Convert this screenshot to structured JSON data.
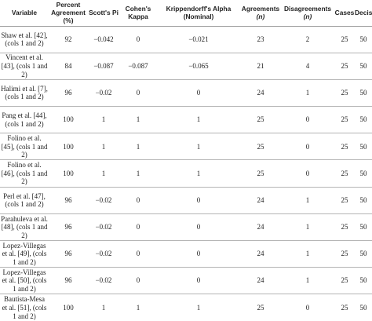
{
  "table": {
    "headers": {
      "variable": "Variable",
      "percent_agreement": "Percent Agreement (%)",
      "scotts_pi": "Scott's Pi",
      "cohens_kappa": "Cohen's Kappa",
      "krippendorff": "Krippendorff's Alpha (Nominal)",
      "agreements": "Agreements",
      "disagreements_1": "Disagreements",
      "disagreements_2": "(n)",
      "cases": "Cases",
      "decisions": "Decisions",
      "agreements_n": "(n)"
    },
    "rows": [
      {
        "variable": "Shaw et al. [42], (cols 1 and 2)",
        "percent": "92",
        "pi": "−0.042",
        "kappa": "0",
        "alpha": "−0.021",
        "agreements": "23",
        "disagreements": "2",
        "cases": "25",
        "decisions": "50"
      },
      {
        "variable": "Vincent et al. [43], (cols 1 and 2)",
        "percent": "84",
        "pi": "−0.087",
        "kappa": "−0.087",
        "alpha": "−0.065",
        "agreements": "21",
        "disagreements": "4",
        "cases": "25",
        "decisions": "50"
      },
      {
        "variable": "Halimi et al. [7], (cols 1 and 2)",
        "percent": "96",
        "pi": "−0.02",
        "kappa": "0",
        "alpha": "0",
        "agreements": "24",
        "disagreements": "1",
        "cases": "25",
        "decisions": "50"
      },
      {
        "variable": "Pang et al. [44], (cols 1 and 2)",
        "percent": "100",
        "pi": "1",
        "kappa": "1",
        "alpha": "1",
        "agreements": "25",
        "disagreements": "0",
        "cases": "25",
        "decisions": "50"
      },
      {
        "variable": "Folino et al. [45], (cols 1 and 2)",
        "percent": "100",
        "pi": "1",
        "kappa": "1",
        "alpha": "1",
        "agreements": "25",
        "disagreements": "0",
        "cases": "25",
        "decisions": "50"
      },
      {
        "variable": "Folino et al. [46], (cols 1 and 2)",
        "percent": "100",
        "pi": "1",
        "kappa": "1",
        "alpha": "1",
        "agreements": "25",
        "disagreements": "0",
        "cases": "25",
        "decisions": "50"
      },
      {
        "variable": "Perl et al. [47], (cols 1 and 2)",
        "percent": "96",
        "pi": "−0.02",
        "kappa": "0",
        "alpha": "0",
        "agreements": "24",
        "disagreements": "1",
        "cases": "25",
        "decisions": "50"
      },
      {
        "variable": "Parahuleva et al. [48], (cols 1 and 2)",
        "percent": "96",
        "pi": "−0.02",
        "kappa": "0",
        "alpha": "0",
        "agreements": "24",
        "disagreements": "1",
        "cases": "25",
        "decisions": "50"
      },
      {
        "variable": "Lopez-Villegas et al. [49], (cols 1 and 2)",
        "percent": "96",
        "pi": "−0.02",
        "kappa": "0",
        "alpha": "0",
        "agreements": "24",
        "disagreements": "1",
        "cases": "25",
        "decisions": "50"
      },
      {
        "variable": "Lopez-Villegas et al. [50], (cols 1 and 2)",
        "percent": "96",
        "pi": "−0.02",
        "kappa": "0",
        "alpha": "0",
        "agreements": "24",
        "disagreements": "1",
        "cases": "25",
        "decisions": "50"
      },
      {
        "variable": "Bautista-Mesa et al. [51], (cols 1 and 2)",
        "percent": "100",
        "pi": "1",
        "kappa": "1",
        "alpha": "1",
        "agreements": "25",
        "disagreements": "0",
        "cases": "25",
        "decisions": "50"
      }
    ]
  }
}
